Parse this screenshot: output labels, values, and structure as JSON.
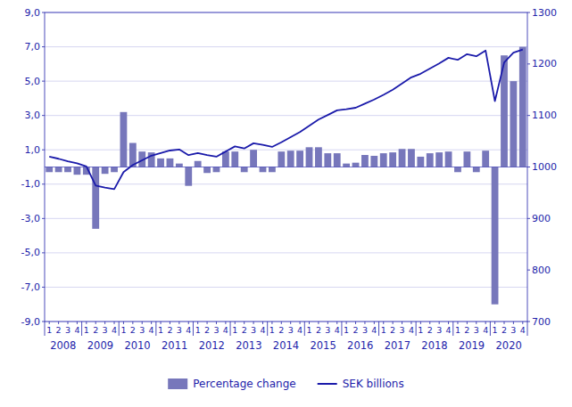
{
  "chart_data": {
    "type": "bar",
    "categories": [
      "1",
      "2",
      "3",
      "4",
      "1",
      "2",
      "3",
      "4",
      "1",
      "2",
      "3",
      "4",
      "1",
      "2",
      "3",
      "4",
      "1",
      "2",
      "3",
      "4",
      "1",
      "2",
      "3",
      "4",
      "1",
      "2",
      "3",
      "4",
      "1",
      "2",
      "3",
      "4",
      "1",
      "2",
      "3",
      "4",
      "1",
      "2",
      "3",
      "4",
      "1",
      "2",
      "3",
      "4",
      "1",
      "2",
      "3",
      "4",
      "1",
      "2",
      "3",
      "4"
    ],
    "groups": [
      "2008",
      "2009",
      "2010",
      "2011",
      "2012",
      "2013",
      "2014",
      "2015",
      "2016",
      "2017",
      "2018",
      "2019",
      "2020"
    ],
    "series": [
      {
        "name": "Percentage change",
        "type": "bar",
        "color": "#7777bb",
        "values": [
          -0.3,
          -0.3,
          -0.3,
          -0.45,
          -0.45,
          -3.6,
          -0.4,
          -0.3,
          3.2,
          1.4,
          0.9,
          0.85,
          0.5,
          0.5,
          0.2,
          -1.1,
          0.35,
          -0.35,
          -0.3,
          0.9,
          0.9,
          -0.3,
          1.0,
          -0.3,
          -0.3,
          0.9,
          0.95,
          0.95,
          1.15,
          1.15,
          0.8,
          0.8,
          0.2,
          0.25,
          0.7,
          0.65,
          0.8,
          0.85,
          1.05,
          1.05,
          0.6,
          0.8,
          0.85,
          0.9,
          -0.3,
          0.9,
          -0.3,
          0.95,
          -8.0,
          6.5,
          5.0,
          7.0
        ]
      },
      {
        "name": "SEK billions",
        "type": "line",
        "axis": "y2",
        "color": "#1a1aaa",
        "values": [
          1020,
          1016,
          1011,
          1007,
          1001,
          964,
          960,
          957,
          990,
          1004,
          1013,
          1022,
          1027,
          1032,
          1034,
          1023,
          1027,
          1023,
          1020,
          1030,
          1040,
          1036,
          1046,
          1043,
          1039,
          1048,
          1058,
          1068,
          1080,
          1092,
          1101,
          1110,
          1112,
          1115,
          1123,
          1131,
          1140,
          1150,
          1162,
          1174,
          1181,
          1191,
          1201,
          1212,
          1208,
          1219,
          1215,
          1226,
          1128,
          1203,
          1222,
          1228
        ]
      }
    ],
    "ylim": [
      -9.0,
      9.0
    ],
    "yticks": [
      {
        "value": -9.0,
        "label": "-9,0"
      },
      {
        "value": -7.0,
        "label": "-7,0"
      },
      {
        "value": -5.0,
        "label": "-5,0"
      },
      {
        "value": -3.0,
        "label": "-3,0"
      },
      {
        "value": -1.0,
        "label": "-1,0"
      },
      {
        "value": 1.0,
        "label": "1,0"
      },
      {
        "value": 3.0,
        "label": "3,0"
      },
      {
        "value": 5.0,
        "label": "5,0"
      },
      {
        "value": 7.0,
        "label": "7,0"
      },
      {
        "value": 9.0,
        "label": "9,0"
      }
    ],
    "y2lim": [
      700,
      1300
    ],
    "y2ticks": [
      700,
      800,
      900,
      1000,
      1100,
      1200,
      1300
    ],
    "grid": true,
    "legend": "bottom"
  }
}
